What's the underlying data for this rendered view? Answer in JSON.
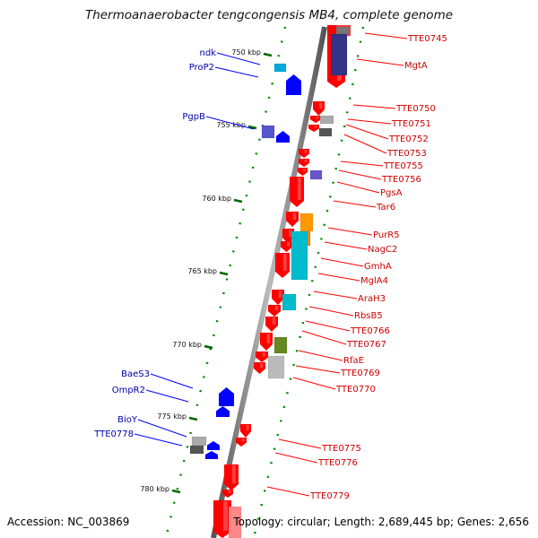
{
  "title": "Thermoanaerobacter tengcongensis MB4, complete genome",
  "footer": {
    "accession": "Accession: NC_003869",
    "info": "Topology: circular; Length: 2,689,445 bp; Genes: 2,656"
  },
  "colors": {
    "red_gene": "#ff0000",
    "blue_gene": "#0000ff",
    "left_label": "#0000aa",
    "right_label": "#cc0000",
    "tick": "#006600",
    "strand": "#888888"
  },
  "kbp_ticks": [
    "750 kbp",
    "755 kbp",
    "760 kbp",
    "765 kbp",
    "770 kbp",
    "775 kbp",
    "780 kbp"
  ],
  "left_labels": [
    "ndk",
    "ProP2",
    "PgpB",
    "BaeS3",
    "OmpR2",
    "BioY",
    "TTE0778"
  ],
  "right_labels": [
    "TTE0745",
    "MgtA",
    "TTE0750",
    "TTE0751",
    "TTE0752",
    "TTE0753",
    "TTE0755",
    "TTE0756",
    "PgsA",
    "Tar6",
    "PurR5",
    "NagC2",
    "GmhA",
    "MglA4",
    "AraH3",
    "RbsB5",
    "TTE0766",
    "TTE0767",
    "RfaE",
    "TTE0769",
    "TTE0770",
    "TTE0775",
    "TTE0776",
    "TTE0779"
  ]
}
